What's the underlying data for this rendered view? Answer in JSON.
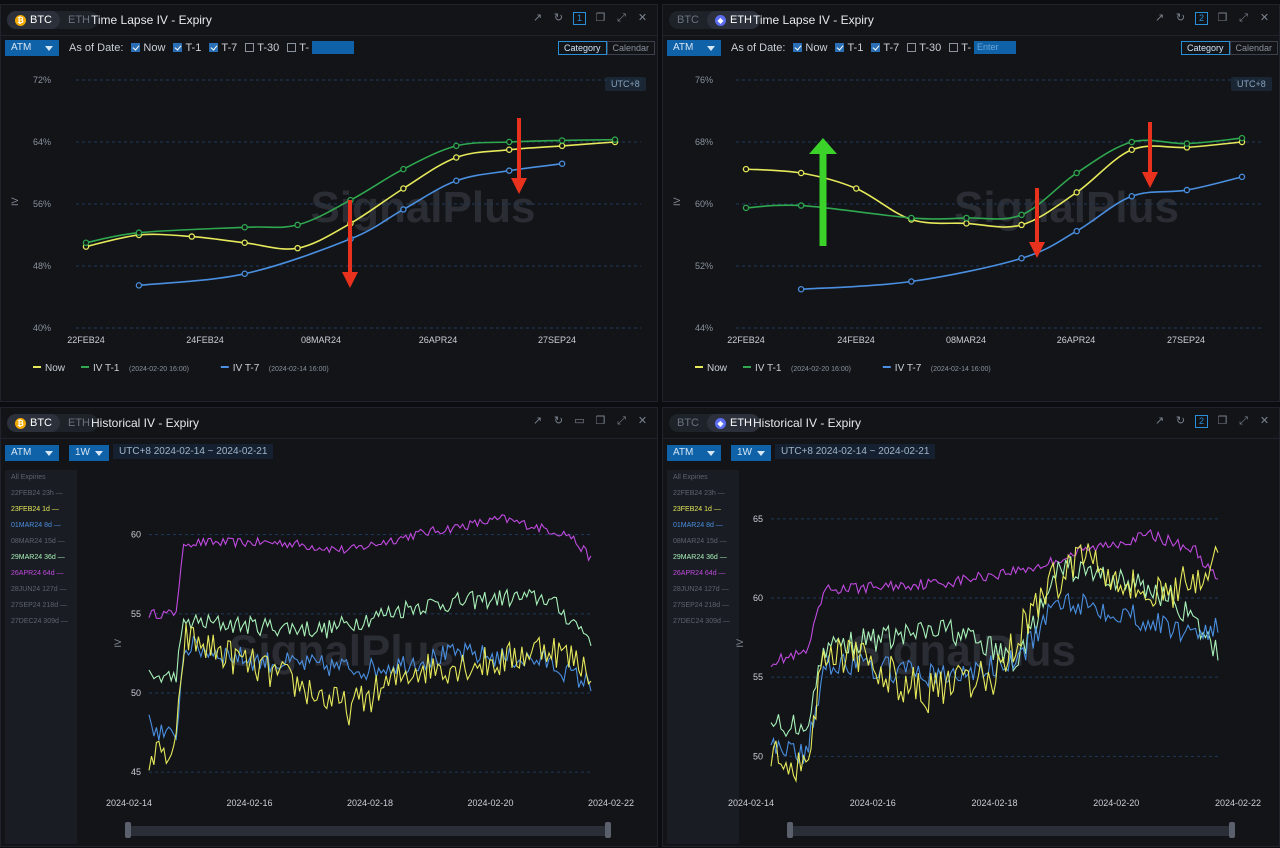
{
  "panels": [
    {
      "coins": [
        "BTC",
        "ETH"
      ],
      "active": "BTC",
      "title": "Time Lapse IV - Expiry",
      "num": "1",
      "select": "ATM",
      "asof_label": "As of Date:",
      "checks": [
        {
          "label": "Now",
          "on": true
        },
        {
          "label": "T-1",
          "on": true
        },
        {
          "label": "T-7",
          "on": true
        },
        {
          "label": "T-30",
          "on": false
        },
        {
          "label": "T-",
          "on": false
        }
      ],
      "t_input": "",
      "view": [
        "Category",
        "Calendar"
      ],
      "utc": "UTC+8",
      "ylabel": "IV",
      "legend": [
        {
          "label": "Now",
          "sub": "",
          "color": "#e6e95a"
        },
        {
          "label": "IV T-1",
          "sub": "(2024-02-20 16:00)",
          "color": "#2fa84f"
        },
        {
          "label": "IV T-7",
          "sub": "(2024-02-14 16:00)",
          "color": "#4a8fe0"
        }
      ]
    },
    {
      "coins": [
        "BTC",
        "ETH"
      ],
      "active": "ETH",
      "title": "Time Lapse IV - Expiry",
      "num": "2",
      "select": "ATM",
      "asof_label": "As of Date:",
      "checks": [
        {
          "label": "Now",
          "on": true
        },
        {
          "label": "T-1",
          "on": true
        },
        {
          "label": "T-7",
          "on": true
        },
        {
          "label": "T-30",
          "on": false
        },
        {
          "label": "T-",
          "on": false
        }
      ],
      "t_input": "Enter",
      "view": [
        "Category",
        "Calendar"
      ],
      "utc": "UTC+8",
      "ylabel": "IV",
      "legend": [
        {
          "label": "Now",
          "sub": "",
          "color": "#e6e95a"
        },
        {
          "label": "IV T-1",
          "sub": "(2024-02-20 16:00)",
          "color": "#2fa84f"
        },
        {
          "label": "IV T-7",
          "sub": "(2024-02-14 16:00)",
          "color": "#4a8fe0"
        }
      ]
    },
    {
      "coins": [
        "BTC",
        "ETH"
      ],
      "active": "BTC",
      "title": "Historical IV - Expiry",
      "num": "",
      "select": "ATM",
      "period": "1W",
      "range": "UTC+8 2024-02-14 ~ 2024-02-21",
      "ylabel": "IV"
    },
    {
      "coins": [
        "BTC",
        "ETH"
      ],
      "active": "ETH",
      "title": "Historical IV - Expiry",
      "num": "2",
      "select": "ATM",
      "period": "1W",
      "range": "UTC+8 2024-02-14 ~ 2024-02-21",
      "ylabel": "IV"
    }
  ],
  "watermark": "SignalPlus",
  "btc_expiries": [
    {
      "label": "All Expiries",
      "color": "#5c636e"
    },
    {
      "label": "22FEB24 23h",
      "color": "#5c636e"
    },
    {
      "label": "23FEB24 1d",
      "color": "#e6e95a"
    },
    {
      "label": "01MAR24 8d",
      "color": "#4a8fe0"
    },
    {
      "label": "08MAR24 15d",
      "color": "#5c636e"
    },
    {
      "label": "29MAR24 36d",
      "color": "#a8f0b8"
    },
    {
      "label": "26APR24 64d",
      "color": "#c04adf"
    },
    {
      "label": "28JUN24 127d",
      "color": "#5c636e"
    },
    {
      "label": "27SEP24 218d",
      "color": "#5c636e"
    },
    {
      "label": "27DEC24 309d",
      "color": "#5c636e"
    }
  ],
  "eth_expiries": [
    {
      "label": "All Expiries",
      "color": "#5c636e"
    },
    {
      "label": "22FEB24 23h",
      "color": "#5c636e"
    },
    {
      "label": "23FEB24 1d",
      "color": "#e6e95a"
    },
    {
      "label": "01MAR24 8d",
      "color": "#4a8fe0"
    },
    {
      "label": "08MAR24 15d",
      "color": "#5c636e"
    },
    {
      "label": "29MAR24 36d",
      "color": "#a8f0b8"
    },
    {
      "label": "26APR24 64d",
      "color": "#c04adf"
    },
    {
      "label": "28JUN24 127d",
      "color": "#5c636e"
    },
    {
      "label": "27SEP24 218d",
      "color": "#5c636e"
    },
    {
      "label": "27DEC24 309d",
      "color": "#5c636e"
    }
  ],
  "chart_data": [
    {
      "type": "line",
      "title": "Time Lapse IV - Expiry (BTC)",
      "ylabel": "IV",
      "ylim": [
        40,
        72
      ],
      "yticks": [
        "40%",
        "48%",
        "56%",
        "64%",
        "72%"
      ],
      "xticks": [
        "22FEB24",
        "24FEB24",
        "08MAR24",
        "26APR24",
        "27SEP24"
      ],
      "series": [
        {
          "name": "Now",
          "color": "#e6e95a",
          "x": [
            0,
            1,
            2,
            3,
            4,
            5,
            6,
            7,
            8,
            9,
            10
          ],
          "values": [
            50.5,
            52,
            51.8,
            51,
            50.3,
            53.5,
            58,
            62,
            63,
            63.5,
            64
          ]
        },
        {
          "name": "IV T-1",
          "color": "#2fa84f",
          "x": [
            0,
            1,
            2,
            3,
            4,
            5,
            6,
            7,
            8,
            9,
            10
          ],
          "values": [
            51,
            52.3,
            null,
            53,
            53.3,
            56.5,
            60.5,
            63.5,
            64,
            64.2,
            64.3
          ]
        },
        {
          "name": "IV T-7",
          "color": "#4a8fe0",
          "x": [
            1,
            2,
            3,
            4,
            5,
            6,
            7,
            8,
            9,
            10
          ],
          "values": [
            45.5,
            null,
            47,
            null,
            51.5,
            55.3,
            59,
            60.3,
            61.2,
            null
          ]
        }
      ]
    },
    {
      "type": "line",
      "title": "Time Lapse IV - Expiry (ETH)",
      "ylabel": "IV",
      "ylim": [
        44,
        76
      ],
      "yticks": [
        "44%",
        "52%",
        "60%",
        "68%",
        "76%"
      ],
      "xticks": [
        "22FEB24",
        "24FEB24",
        "08MAR24",
        "26APR24",
        "27SEP24"
      ],
      "series": [
        {
          "name": "Now",
          "color": "#e6e95a",
          "x": [
            0,
            1,
            2,
            3,
            4,
            5,
            6,
            7,
            8,
            9
          ],
          "values": [
            64.5,
            64,
            62,
            58,
            57.5,
            57.3,
            61.5,
            67,
            67.3,
            68
          ]
        },
        {
          "name": "IV T-1",
          "color": "#2fa84f",
          "x": [
            0,
            1,
            2,
            3,
            4,
            5,
            6,
            7,
            8,
            9
          ],
          "values": [
            59.5,
            59.8,
            null,
            58.2,
            58.2,
            58.6,
            64,
            68,
            67.8,
            68.5
          ]
        },
        {
          "name": "IV T-7",
          "color": "#4a8fe0",
          "x": [
            1,
            2,
            3,
            4,
            5,
            6,
            7,
            8,
            9
          ],
          "values": [
            49,
            null,
            50,
            null,
            53,
            56.5,
            61,
            61.8,
            63.5
          ]
        }
      ]
    },
    {
      "type": "line",
      "title": "Historical IV - Expiry (BTC)",
      "ylabel": "IV",
      "ylim": [
        44,
        62
      ],
      "yticks": [
        "45",
        "50",
        "55",
        "60"
      ],
      "xticks": [
        "2024-02-14",
        "2024-02-16",
        "2024-02-18",
        "2024-02-20",
        "2024-02-22"
      ]
    },
    {
      "type": "line",
      "title": "Historical IV - Expiry (ETH)",
      "ylabel": "IV",
      "ylim": [
        48,
        66
      ],
      "yticks": [
        "50",
        "55",
        "60",
        "65"
      ],
      "xticks": [
        "2024-02-14",
        "2024-02-16",
        "2024-02-18",
        "2024-02-20",
        "2024-02-22"
      ]
    }
  ]
}
